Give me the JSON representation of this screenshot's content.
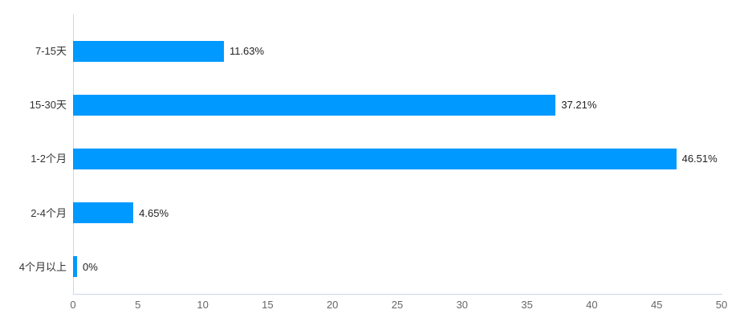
{
  "chart_data": {
    "type": "bar",
    "orientation": "horizontal",
    "title": "",
    "xlabel": "",
    "ylabel": "",
    "categories": [
      "7-15天",
      "15-30天",
      "1-2个月",
      "2-4个月",
      "4个月以上"
    ],
    "values": [
      11.63,
      37.21,
      46.51,
      4.65,
      0
    ],
    "value_labels": [
      "11.63%",
      "37.21%",
      "46.51%",
      "4.65%",
      "0%"
    ],
    "xlim": [
      0,
      50
    ],
    "xticks": [
      0,
      5,
      10,
      15,
      20,
      25,
      30,
      35,
      40,
      45,
      50
    ],
    "grid": false,
    "legend": false,
    "bar_color": "#0099ff",
    "axis_line_color": "#ccd6eb",
    "background_color": "#ffffff"
  }
}
